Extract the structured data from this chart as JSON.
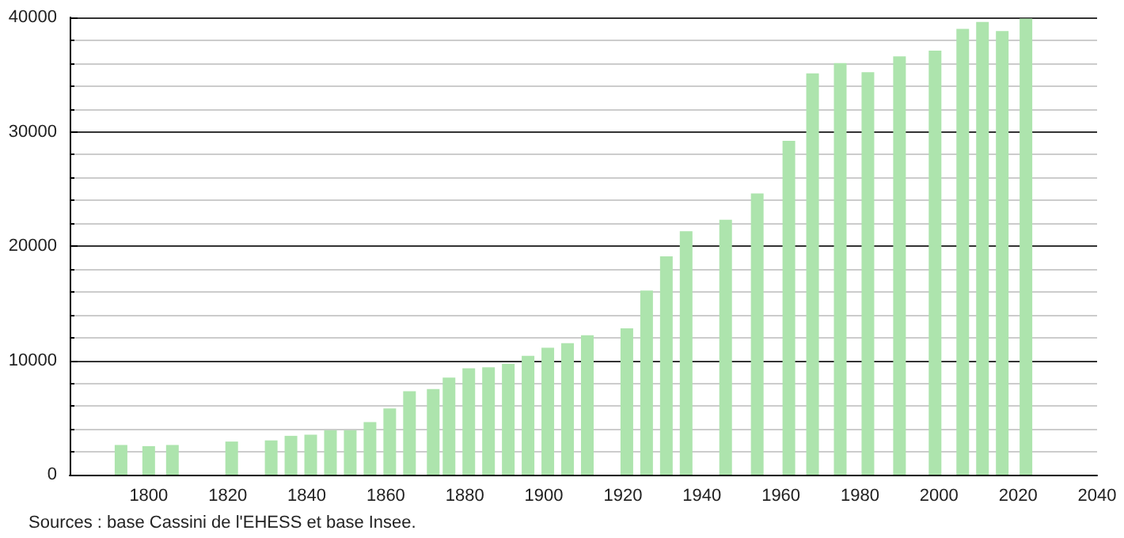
{
  "chart_data": {
    "type": "bar",
    "x": [
      1793,
      1800,
      1806,
      1821,
      1831,
      1836,
      1841,
      1846,
      1851,
      1856,
      1861,
      1866,
      1872,
      1876,
      1881,
      1886,
      1891,
      1896,
      1901,
      1906,
      1911,
      1921,
      1926,
      1931,
      1936,
      1946,
      1954,
      1962,
      1968,
      1975,
      1982,
      1990,
      1999,
      2006,
      2011,
      2016,
      2022
    ],
    "values": [
      2600,
      2500,
      2600,
      2900,
      3000,
      3400,
      3500,
      3900,
      3900,
      4600,
      5800,
      7300,
      7500,
      8500,
      9300,
      9400,
      9700,
      10400,
      11100,
      11500,
      12200,
      12800,
      16100,
      19100,
      21300,
      22300,
      24600,
      29200,
      35100,
      36000,
      35200,
      36600,
      37100,
      39000,
      39600,
      38800,
      39900
    ],
    "color": "#ade4ad",
    "xlim": [
      1780,
      2040
    ],
    "xticks": [
      1800,
      1820,
      1840,
      1860,
      1880,
      1900,
      1920,
      1940,
      1960,
      1980,
      2000,
      2020,
      2040
    ],
    "ylim": [
      0,
      40000
    ],
    "yticks": [
      0,
      10000,
      20000,
      30000,
      40000
    ],
    "grid": "y",
    "annotations": [
      "Sources : base Cassini de l'EHESS et base Insee."
    ]
  }
}
